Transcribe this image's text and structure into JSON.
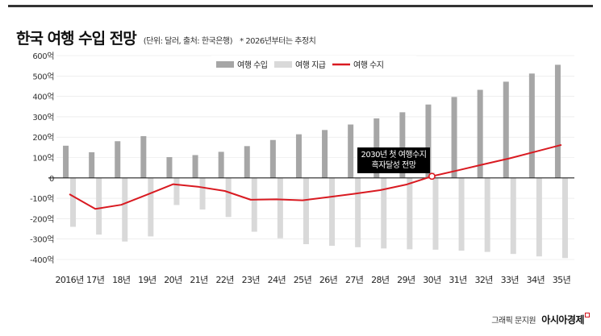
{
  "title": "한국 여행 수입 전망",
  "subtitle": "(단위: 달러, 출처: 한국은행)",
  "note": "* 2026년부터는 추정치",
  "credit": {
    "source": "그래픽 문지원",
    "brand": "아시아경제"
  },
  "colors": {
    "income": "#a6a6a6",
    "expense": "#d9d9d9",
    "balance": "#d91a21",
    "axis": "#222222",
    "grid": "#e3e3e3"
  },
  "chart_data": {
    "type": "bar",
    "title": "한국 여행 수입 전망",
    "xlabel": "",
    "ylabel": "",
    "ylim": [
      -400,
      600
    ],
    "yticks": [
      600,
      500,
      400,
      300,
      200,
      100,
      0,
      -100,
      -200,
      -300,
      -400
    ],
    "ytick_labels": [
      "600억",
      "500억",
      "400억",
      "300억",
      "200억",
      "100억",
      "0",
      "-100억",
      "-200억",
      "-300억",
      "-400억"
    ],
    "categories": [
      "2016년",
      "17년",
      "18년",
      "19년",
      "20년",
      "21년",
      "22년",
      "23년",
      "24년",
      "25년",
      "26년",
      "27년",
      "28년",
      "29년",
      "30년",
      "31년",
      "32년",
      "33년",
      "34년",
      "35년"
    ],
    "legend_position": "top",
    "series": [
      {
        "name": "여행 수입",
        "kind": "bar",
        "values": [
          158,
          126,
          180,
          205,
          102,
          112,
          128,
          156,
          186,
          214,
          235,
          262,
          292,
          322,
          360,
          397,
          432,
          472,
          512,
          555
        ]
      },
      {
        "name": "여행 지급",
        "kind": "bar",
        "values": [
          -240,
          -278,
          -312,
          -287,
          -133,
          -155,
          -192,
          -264,
          -296,
          -325,
          -333,
          -340,
          -346,
          -350,
          -352,
          -357,
          -363,
          -373,
          -385,
          -393
        ]
      },
      {
        "name": "여행 수지",
        "kind": "line",
        "values": [
          -80,
          -152,
          -132,
          -82,
          -31,
          -44,
          -64,
          -107,
          -105,
          -110,
          -94,
          -78,
          -60,
          -33,
          8,
          37,
          67,
          96,
          129,
          162
        ]
      }
    ],
    "annotation": {
      "lines": [
        "2030년 첫 여행수지",
        "흑자달성 전망"
      ],
      "category_index": 14
    }
  }
}
